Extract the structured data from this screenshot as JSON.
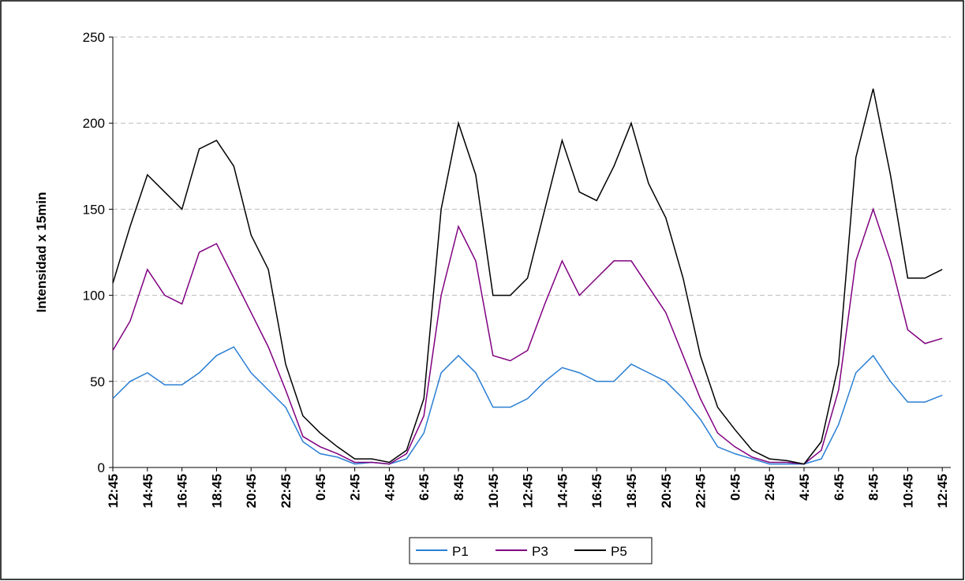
{
  "chart_data": {
    "type": "line",
    "y_label": "Intensidad x 15min",
    "categories": [
      "12:45",
      null,
      "14:45",
      null,
      "16:45",
      null,
      "18:45",
      null,
      "20:45",
      null,
      "22:45",
      null,
      "0:45",
      null,
      "2:45",
      null,
      "4:45",
      null,
      "6:45",
      null,
      "8:45",
      null,
      "10:45",
      null,
      "12:45",
      null,
      "14:45",
      null,
      "16:45",
      null,
      "18:45",
      null,
      "20:45",
      null,
      "22:45",
      null,
      "0:45",
      null,
      "2:45",
      null,
      "4:45",
      null,
      "6:45",
      null,
      "8:45",
      null,
      "10:45",
      null,
      "12:45"
    ],
    "series": [
      {
        "name": "P1",
        "color": "#2a7fd4",
        "values": [
          40,
          50,
          55,
          48,
          48,
          55,
          65,
          70,
          55,
          45,
          35,
          15,
          8,
          6,
          2,
          3,
          2,
          5,
          20,
          55,
          65,
          55,
          35,
          35,
          40,
          50,
          58,
          55,
          50,
          50,
          60,
          55,
          50,
          40,
          28,
          12,
          8,
          5,
          2,
          2,
          2,
          5,
          25,
          55,
          65,
          50,
          38,
          38,
          42
        ]
      },
      {
        "name": "P3",
        "color": "#800080",
        "values": [
          68,
          85,
          115,
          100,
          95,
          125,
          130,
          110,
          90,
          70,
          45,
          18,
          12,
          8,
          3,
          3,
          2,
          8,
          30,
          100,
          140,
          120,
          65,
          62,
          68,
          95,
          120,
          100,
          110,
          120,
          120,
          105,
          90,
          65,
          40,
          20,
          12,
          6,
          3,
          3,
          2,
          10,
          45,
          120,
          150,
          120,
          80,
          72,
          75
        ]
      },
      {
        "name": "P5",
        "color": "#000000",
        "values": [
          107,
          140,
          170,
          160,
          150,
          185,
          190,
          175,
          135,
          115,
          60,
          30,
          20,
          12,
          5,
          5,
          3,
          10,
          40,
          150,
          200,
          170,
          100,
          100,
          110,
          150,
          190,
          160,
          155,
          175,
          200,
          165,
          145,
          110,
          65,
          35,
          22,
          10,
          5,
          4,
          2,
          15,
          60,
          180,
          220,
          170,
          110,
          110,
          115
        ]
      }
    ],
    "ylim": [
      0,
      250
    ],
    "yticks": [
      0,
      50,
      100,
      150,
      200,
      250
    ],
    "grid": true,
    "legend": "bottom"
  }
}
